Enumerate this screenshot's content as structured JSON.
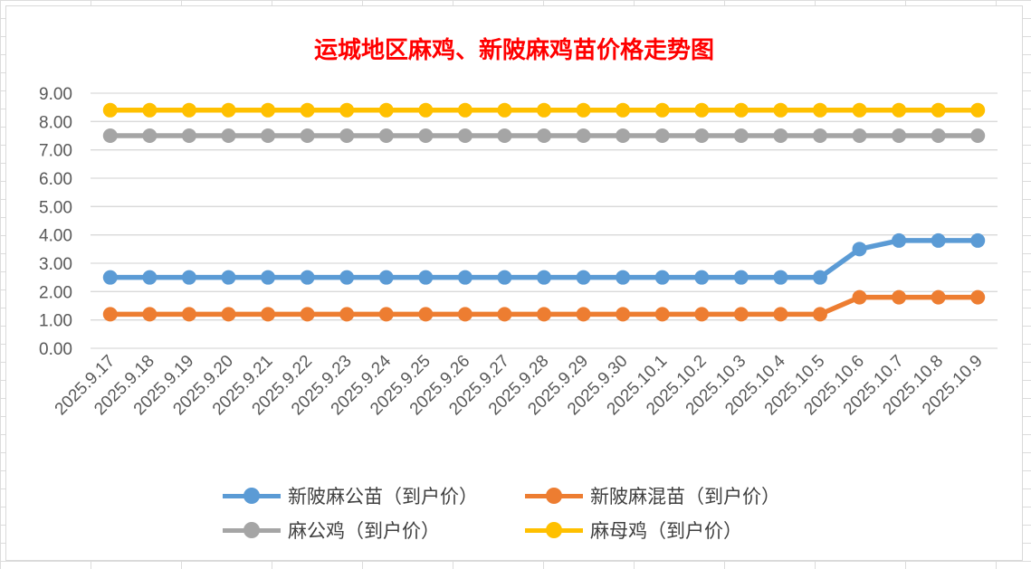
{
  "chart_data": {
    "type": "line",
    "title": "运城地区麻鸡、新陂麻鸡苗价格走势图",
    "xlabel": "",
    "ylabel": "",
    "ylim": [
      0,
      9
    ],
    "yticks": [
      "0.00",
      "1.00",
      "2.00",
      "3.00",
      "4.00",
      "5.00",
      "6.00",
      "7.00",
      "8.00",
      "9.00"
    ],
    "grid": true,
    "legend_position": "bottom",
    "categories": [
      "2025.9.17",
      "2025.9.18",
      "2025.9.19",
      "2025.9.20",
      "2025.9.21",
      "2025.9.22",
      "2025.9.23",
      "2025.9.24",
      "2025.9.25",
      "2025.9.26",
      "2025.9.27",
      "2025.9.28",
      "2025.9.29",
      "2025.9.30",
      "2025.10.1",
      "2025.10.2",
      "2025.10.3",
      "2025.10.4",
      "2025.10.5",
      "2025.10.6",
      "2025.10.7",
      "2025.10.8",
      "2025.10.9"
    ],
    "series": [
      {
        "name": "新陂麻公苗（到户价）",
        "color": "#5b9bd5",
        "values": [
          2.5,
          2.5,
          2.5,
          2.5,
          2.5,
          2.5,
          2.5,
          2.5,
          2.5,
          2.5,
          2.5,
          2.5,
          2.5,
          2.5,
          2.5,
          2.5,
          2.5,
          2.5,
          2.5,
          3.5,
          3.8,
          3.8,
          3.8
        ]
      },
      {
        "name": "新陂麻混苗（到户价）",
        "color": "#ed7d31",
        "values": [
          1.2,
          1.2,
          1.2,
          1.2,
          1.2,
          1.2,
          1.2,
          1.2,
          1.2,
          1.2,
          1.2,
          1.2,
          1.2,
          1.2,
          1.2,
          1.2,
          1.2,
          1.2,
          1.2,
          1.8,
          1.8,
          1.8,
          1.8
        ]
      },
      {
        "name": "麻公鸡（到户价）",
        "color": "#a5a5a5",
        "values": [
          7.5,
          7.5,
          7.5,
          7.5,
          7.5,
          7.5,
          7.5,
          7.5,
          7.5,
          7.5,
          7.5,
          7.5,
          7.5,
          7.5,
          7.5,
          7.5,
          7.5,
          7.5,
          7.5,
          7.5,
          7.5,
          7.5,
          7.5
        ]
      },
      {
        "name": "麻母鸡（到户价）",
        "color": "#ffc000",
        "values": [
          8.4,
          8.4,
          8.4,
          8.4,
          8.4,
          8.4,
          8.4,
          8.4,
          8.4,
          8.4,
          8.4,
          8.4,
          8.4,
          8.4,
          8.4,
          8.4,
          8.4,
          8.4,
          8.4,
          8.4,
          8.4,
          8.4,
          8.4
        ]
      }
    ]
  }
}
